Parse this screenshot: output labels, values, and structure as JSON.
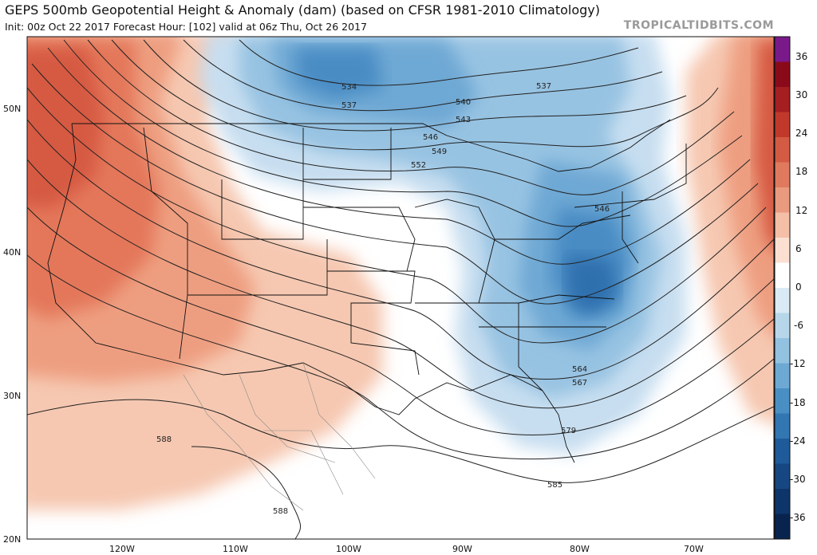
{
  "header": {
    "title": "GEPS 500mb Geopotential Height & Anomaly (dam) (based on CFSR 1981-2010 Climatology)",
    "subtitle": "Init: 00z Oct 22 2017   Forecast Hour: [102]   valid at 06z Thu, Oct 26 2017",
    "brand": "TROPICALTIDBITS.COM"
  },
  "map": {
    "lat_labels": [
      "50N",
      "40N",
      "30N",
      "20N"
    ],
    "lon_labels": [
      "120W",
      "110W",
      "100W",
      "90W",
      "80W",
      "70W"
    ],
    "contour_labels": [
      "534",
      "537",
      "537",
      "540",
      "543",
      "546",
      "549",
      "552",
      "546",
      "564",
      "567",
      "579",
      "585",
      "588",
      "588"
    ]
  },
  "colorbar": {
    "ticks": [
      "36",
      "30",
      "24",
      "18",
      "12",
      "6",
      "0",
      "-6",
      "-12",
      "-18",
      "-24",
      "-30",
      "-36"
    ],
    "colors": [
      "#7a1a8a",
      "#8b0a1a",
      "#a51e22",
      "#c0392b",
      "#d35a43",
      "#e07a5f",
      "#ea9a7e",
      "#f4bfa6",
      "#fbe0d2",
      "#ffffff",
      "#d9eaf5",
      "#b8d6ea",
      "#93c2e1",
      "#6ea9d4",
      "#4a8fc3",
      "#3276b2",
      "#1f5b9a",
      "#164783",
      "#0e3569",
      "#08244e"
    ]
  }
}
